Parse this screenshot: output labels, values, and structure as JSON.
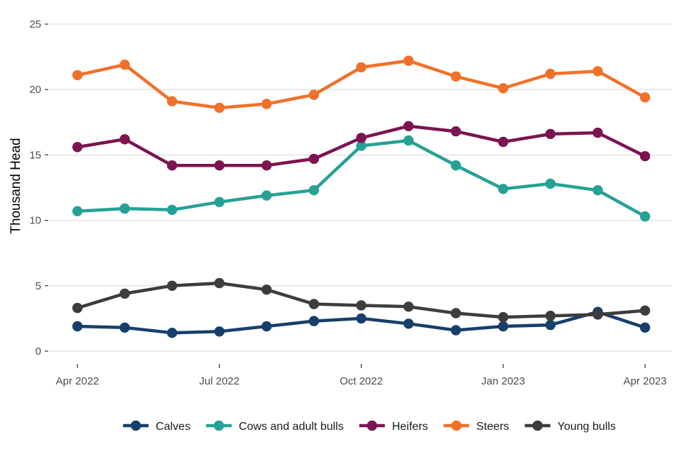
{
  "chart_data": {
    "type": "line",
    "ylabel": "Thousand Head",
    "xlabel": "",
    "ylim": [
      0,
      25
    ],
    "yticks": [
      0,
      5,
      10,
      15,
      20,
      25
    ],
    "x": [
      "Apr 2022",
      "May 2022",
      "Jun 2022",
      "Jul 2022",
      "Aug 2022",
      "Sep 2022",
      "Oct 2022",
      "Nov 2022",
      "Dec 2022",
      "Jan 2023",
      "Feb 2023",
      "Mar 2023",
      "Apr 2023"
    ],
    "xtick_labels": [
      {
        "at": "Apr 2022",
        "label": "Apr 2022"
      },
      {
        "at": "Jul 2022",
        "label": "Jul 2022"
      },
      {
        "at": "Oct 2022",
        "label": "Oct 2022"
      },
      {
        "at": "Jan 2023",
        "label": "Jan 2023"
      },
      {
        "at": "Apr 2023",
        "label": "Apr 2023"
      }
    ],
    "grid": true,
    "legend_position": "bottom",
    "series": [
      {
        "name": "Calves",
        "color": "#173f6b",
        "values": [
          1.9,
          1.8,
          1.4,
          1.5,
          1.9,
          2.3,
          2.5,
          2.1,
          1.6,
          1.9,
          2.0,
          3.0,
          1.8
        ]
      },
      {
        "name": "Cows and adult bulls",
        "color": "#26a196",
        "values": [
          10.7,
          10.9,
          10.8,
          11.4,
          11.9,
          12.3,
          15.7,
          16.1,
          14.2,
          12.4,
          12.8,
          12.3,
          10.3
        ]
      },
      {
        "name": "Heifers",
        "color": "#7b1450",
        "values": [
          15.6,
          16.2,
          14.2,
          14.2,
          14.2,
          14.7,
          16.3,
          17.2,
          16.8,
          16.0,
          16.6,
          16.7,
          14.9
        ]
      },
      {
        "name": "Steers",
        "color": "#f0712a",
        "values": [
          21.1,
          21.9,
          19.1,
          18.6,
          18.9,
          19.6,
          21.7,
          22.2,
          21.0,
          20.1,
          21.2,
          21.4,
          19.4
        ]
      },
      {
        "name": "Young bulls",
        "color": "#3d3d3d",
        "values": [
          3.3,
          4.4,
          5.0,
          5.2,
          4.7,
          3.6,
          3.5,
          3.4,
          2.9,
          2.6,
          2.7,
          2.8,
          3.1
        ]
      }
    ]
  }
}
